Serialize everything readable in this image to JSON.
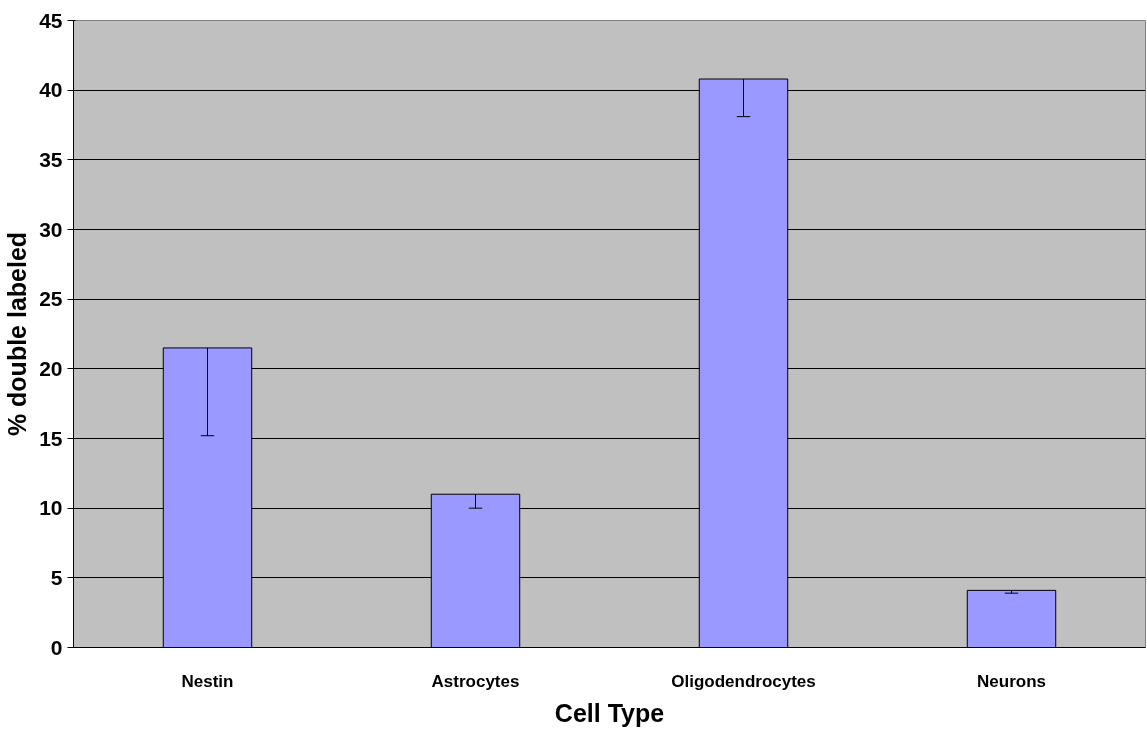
{
  "chart_data": {
    "type": "bar",
    "xlabel": "Cell Type",
    "ylabel": "% double labeled",
    "categories": [
      "Nestin",
      "Astrocytes",
      "Oligodendrocytes",
      "Neurons"
    ],
    "values": [
      21.5,
      11.0,
      40.8,
      4.1
    ],
    "errors": [
      [
        15.2,
        21.5
      ],
      [
        10.0,
        11.0
      ],
      [
        38.1,
        40.8
      ],
      [
        3.9,
        4.1
      ]
    ],
    "color": "#9999ff",
    "ylim": [
      0,
      45
    ],
    "yticks": [
      0,
      5,
      10,
      15,
      20,
      25,
      30,
      35,
      40,
      45
    ],
    "grid": "y"
  }
}
